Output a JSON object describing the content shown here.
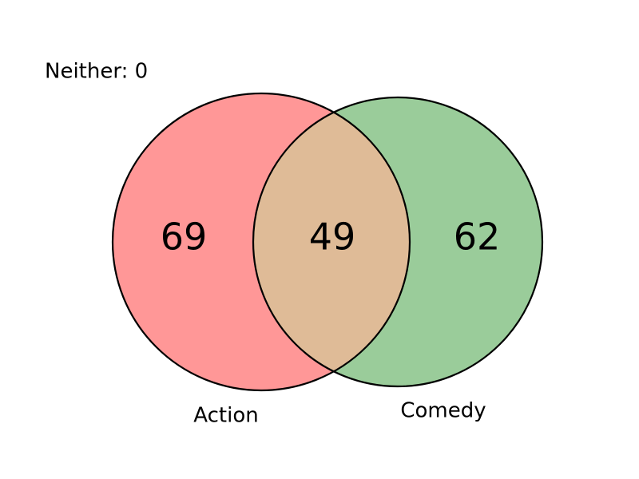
{
  "chart_data": {
    "type": "venn",
    "sets": [
      {
        "name": "Action",
        "only": 69,
        "color": "#ff9797"
      },
      {
        "name": "Comedy",
        "only": 62,
        "color": "#9acc9a"
      }
    ],
    "intersection": 49,
    "intersection_color": "#dfbb97",
    "neither_label": "Neither: 0"
  },
  "text": {
    "action_only": "69",
    "both": "49",
    "comedy_only": "62",
    "action_label": "Action",
    "comedy_label": "Comedy",
    "neither": "Neither: 0"
  }
}
